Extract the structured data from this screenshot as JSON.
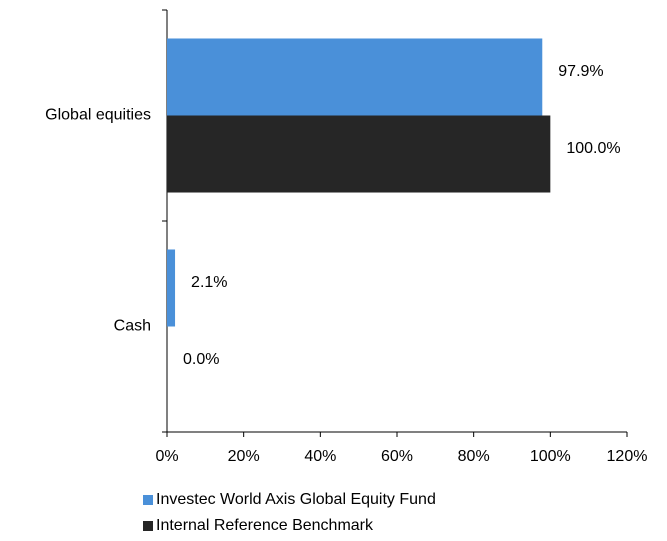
{
  "chart_data": {
    "type": "bar",
    "orientation": "horizontal",
    "categories": [
      "Global equities",
      "Cash"
    ],
    "series": [
      {
        "name": "Investec World Axis Global Equity Fund",
        "color": "#4a90d9",
        "values": [
          97.9,
          2.1
        ],
        "value_labels": [
          "97.9%",
          "2.1%"
        ]
      },
      {
        "name": "Internal Reference Benchmark",
        "color": "#262626",
        "values": [
          100.0,
          0.0
        ],
        "value_labels": [
          "100.0%",
          "0.0%"
        ]
      }
    ],
    "xlim": [
      0,
      120
    ],
    "xticks": [
      {
        "value": 0,
        "label": "0%"
      },
      {
        "value": 20,
        "label": "20%"
      },
      {
        "value": 40,
        "label": "40%"
      },
      {
        "value": 60,
        "label": "60%"
      },
      {
        "value": 80,
        "label": "80%"
      },
      {
        "value": 100,
        "label": "100%"
      },
      {
        "value": 120,
        "label": "120%"
      }
    ],
    "legend": "bottom"
  }
}
